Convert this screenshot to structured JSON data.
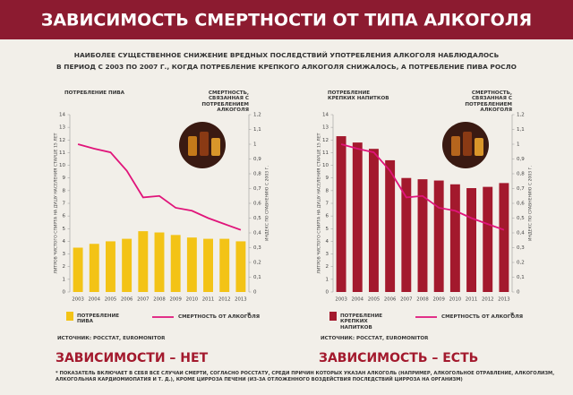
{
  "header": {
    "title": "ЗАВИСИМОСТЬ СМЕРТНОСТИ ОТ ТИПА АЛКОГОЛЯ",
    "subtitle": [
      "НАИБОЛЕЕ СУЩЕСТВЕННОЕ СНИЖЕНИЕ ВРЕДНЫХ ПОСЛЕДСТВИЙ УПОТРЕБЛЕНИЯ АЛКОГОЛЯ НАБЛЮДАЛОСЬ",
      "В ПЕРИОД С 2003 ПО 2007 Г., КОГДА ПОТРЕБЛЕНИЕ КРЕПКОГО АЛКОГОЛЯ СНИЖАЛОСЬ, А ПОТРЕБЛЕНИЕ ПИВА РОСЛО"
    ]
  },
  "chart_data": [
    {
      "type": "combo",
      "y_title": "ПОТРЕБЛЕНИЕ ПИВА",
      "y2_title": "СМЕРТНОСТЬ, СВЯЗАННАЯ С ПОТРЕБЛЕНИЕМ АЛКОГОЛЯ",
      "ylabel": "ЛИТРОВ ЧИСТОГО СПИРТА НА ДУШУ НАСЕЛЕНИЯ СТАРШЕ 15 ЛЕТ",
      "y2label": "ИНДЕКС ПО СРАВНЕНИЮ С 2003 Г.",
      "categories": [
        "2003",
        "2004",
        "2005",
        "2006",
        "2007",
        "2008",
        "2009",
        "2010",
        "2011",
        "2012",
        "2013"
      ],
      "series": [
        {
          "name": "ПОТРЕБЛЕНИЕ ПИВА",
          "color": "#f3c316",
          "values": [
            3.5,
            3.8,
            4.0,
            4.2,
            4.8,
            4.7,
            4.5,
            4.3,
            4.2,
            4.2,
            4.0
          ]
        },
        {
          "name": "СМЕРТНОСТЬ ОТ АЛКОГОЛЯ",
          "color": "#e0147a",
          "axis": "y2",
          "values": [
            1.0,
            0.97,
            0.945,
            0.82,
            0.64,
            0.65,
            0.57,
            0.55,
            0.5,
            0.46,
            0.42
          ]
        }
      ],
      "legend_note": "*",
      "ylim": [
        0,
        14
      ],
      "yticks": [
        0,
        1,
        2,
        3,
        4,
        5,
        6,
        7,
        8,
        9,
        10,
        11,
        12,
        13,
        14
      ],
      "y2lim": [
        0,
        1.2
      ],
      "y2ticks": [
        0,
        {
          "value": 0.1,
          "label": "0,1"
        },
        {
          "value": 0.2,
          "label": "0,2"
        },
        {
          "value": 0.3,
          "label": "0,3"
        },
        {
          "value": 0.4,
          "label": "0,4"
        },
        {
          "value": 0.5,
          "label": "0,5"
        },
        {
          "value": 0.6,
          "label": "0,6"
        },
        {
          "value": 0.7,
          "label": "0,7"
        },
        {
          "value": 0.8,
          "label": "0,8"
        },
        {
          "value": 0.9,
          "label": "0,9"
        },
        1,
        {
          "value": 1.1,
          "label": "1,1"
        },
        {
          "value": 1.2,
          "label": "1,2"
        }
      ],
      "source": "ИСТОЧНИК: РОССТАТ, EUROMONITOR",
      "conclusion": "ЗАВИСИМОСТИ – НЕТ"
    },
    {
      "type": "combo",
      "y_title": "ПОТРЕБЛЕНИЕ КРЕПКИХ НАПИТКОВ",
      "y2_title": "СМЕРТНОСТЬ, СВЯЗАННАЯ С ПОТРЕБЛЕНИЕМ АЛКОГОЛЯ",
      "ylabel": "ЛИТРОВ ЧИСТОГО СПИРТА НА ДУШУ НАСЕЛЕНИЯ СТАРШЕ 15 ЛЕТ",
      "y2label": "ИНДЕКС ПО СРАВНЕНИЮ С 2003 Г.",
      "categories": [
        "2003",
        "2004",
        "2005",
        "2006",
        "2007",
        "2008",
        "2009",
        "2010",
        "2011",
        "2012",
        "2013"
      ],
      "series": [
        {
          "name": "ПОТРЕБЛЕНИЕ КРЕПКИХ НАПИТКОВ",
          "color": "#a3192d",
          "values": [
            12.3,
            11.8,
            11.3,
            10.4,
            9.0,
            8.9,
            8.8,
            8.5,
            8.2,
            8.3,
            8.6
          ]
        },
        {
          "name": "СМЕРТНОСТЬ ОТ АЛКОГОЛЯ",
          "color": "#e0147a",
          "axis": "y2",
          "values": [
            1.0,
            0.97,
            0.945,
            0.82,
            0.64,
            0.65,
            0.57,
            0.55,
            0.5,
            0.46,
            0.42
          ]
        }
      ],
      "legend_note": "*",
      "ylim": [
        0,
        14
      ],
      "yticks": [
        0,
        1,
        2,
        3,
        4,
        5,
        6,
        7,
        8,
        9,
        10,
        11,
        12,
        13,
        14
      ],
      "y2lim": [
        0,
        1.2
      ],
      "y2ticks": [
        0,
        {
          "value": 0.1,
          "label": "0,1"
        },
        {
          "value": 0.2,
          "label": "0,2"
        },
        {
          "value": 0.3,
          "label": "0,3"
        },
        {
          "value": 0.4,
          "label": "0,4"
        },
        {
          "value": 0.5,
          "label": "0,5"
        },
        {
          "value": 0.6,
          "label": "0,6"
        },
        {
          "value": 0.7,
          "label": "0,7"
        },
        {
          "value": 0.8,
          "label": "0,8"
        },
        {
          "value": 0.9,
          "label": "0,9"
        },
        1,
        {
          "value": 1.1,
          "label": "1,1"
        },
        {
          "value": 1.2,
          "label": "1,2"
        }
      ],
      "source": "ИСТОЧНИК: РОССТАТ, EUROMONITOR",
      "conclusion": "ЗАВИСИМОСТЬ – ЕСТЬ"
    }
  ],
  "footnote": "* ПОКАЗАТЕЛЬ ВКЛЮЧАЕТ В СЕБЯ ВСЕ СЛУЧАИ СМЕРТИ, СОГЛАСНО РОССТАТУ, СРЕДИ ПРИЧИН КОТОРЫХ УКАЗАН АЛКОГОЛЬ (НАПРИМЕР, АЛКОГОЛЬНОЕ ОТРАВЛЕНИЕ, АЛКОГОЛИЗМ, АЛКОГОЛЬНАЯ КАРДИОМИОПАТИЯ И Т. Д.), КРОМЕ ЦИРРОЗА ПЕЧЕНИ (ИЗ-ЗА ОТЛОЖЕННОГО ВОЗДЕЙСТВИЯ ПОСЛЕДСТВИЙ ЦИРРОЗА НА ОРГАНИЗМ)"
}
